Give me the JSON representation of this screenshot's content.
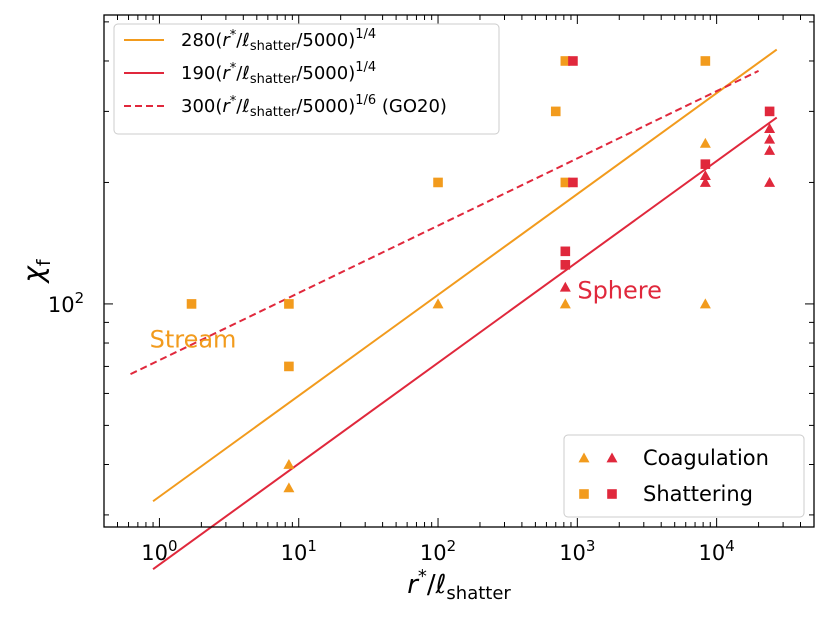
{
  "chart_data": {
    "type": "scatter",
    "title": "",
    "xlabel": {
      "main": "r",
      "sup": "*",
      "slash": "/",
      "ell": "ℓ",
      "sub": "shatter"
    },
    "ylabel": {
      "main": "χ",
      "sub": "f"
    },
    "xscale": "log",
    "yscale": "log",
    "xlim": [
      0.4,
      50000
    ],
    "ylim": [
      28,
      520
    ],
    "x_ticks": [
      {
        "value": 1,
        "base": "10",
        "exp": "0"
      },
      {
        "value": 10,
        "base": "10",
        "exp": "1"
      },
      {
        "value": 100,
        "base": "10",
        "exp": "2"
      },
      {
        "value": 1000,
        "base": "10",
        "exp": "3"
      },
      {
        "value": 10000,
        "base": "10",
        "exp": "4"
      }
    ],
    "y_ticks": [
      {
        "value": 100,
        "base": "10",
        "exp": "2"
      }
    ],
    "colors": {
      "stream": "#f29b1d",
      "sphere": "#e0283c"
    },
    "lines": [
      {
        "name": "280(r*/ℓshatter/5000)^1/4",
        "coef": 280,
        "exponent": 0.25,
        "x_range": [
          0.9,
          27000
        ],
        "color": "#f29b1d",
        "dash": false
      },
      {
        "name": "190(r*/ℓshatter/5000)^1/4",
        "coef": 190,
        "exponent": 0.25,
        "x_range": [
          0.9,
          27000
        ],
        "color": "#e0283c",
        "dash": false
      },
      {
        "name": "300(r*/ℓshatter/5000)^1/6 (GO20)",
        "coef": 300,
        "exponent": 0.16667,
        "x_range": [
          0.62,
          20000
        ],
        "color": "#e0283c",
        "dash": true
      }
    ],
    "series": [
      {
        "group": "stream",
        "marker": "triangle",
        "color": "#f29b1d",
        "points": [
          [
            8.5,
            35
          ],
          [
            8.5,
            40
          ],
          [
            100,
            100
          ],
          [
            820,
            100
          ],
          [
            8300,
            100
          ],
          [
            8300,
            250
          ]
        ]
      },
      {
        "group": "stream",
        "marker": "square",
        "color": "#f29b1d",
        "points": [
          [
            1.7,
            100
          ],
          [
            8.5,
            100
          ],
          [
            8.5,
            70
          ],
          [
            100,
            200
          ],
          [
            700,
            300
          ],
          [
            820,
            200
          ],
          [
            820,
            400
          ],
          [
            8300,
            400
          ]
        ]
      },
      {
        "group": "sphere",
        "marker": "triangle",
        "color": "#e0283c",
        "points": [
          [
            820,
            110
          ],
          [
            8300,
            208
          ],
          [
            8300,
            200
          ],
          [
            24000,
            200
          ],
          [
            24000,
            240
          ],
          [
            24000,
            256
          ],
          [
            24000,
            272
          ]
        ]
      },
      {
        "group": "sphere",
        "marker": "square",
        "color": "#e0283c",
        "points": [
          [
            930,
            400
          ],
          [
            930,
            200
          ],
          [
            820,
            125
          ],
          [
            820,
            135
          ],
          [
            8300,
            222
          ],
          [
            24000,
            300
          ]
        ]
      }
    ],
    "legend_top": {
      "location": "top-left",
      "entries": [
        {
          "coef": "280(",
          "r": "r",
          "star": "*",
          "slash": "/",
          "ell": "ℓ",
          "sub": "shatter",
          "tail": "/5000)",
          "exp": "1/4",
          "suffix": "",
          "color": "#f29b1d",
          "dash": false
        },
        {
          "coef": "190(",
          "r": "r",
          "star": "*",
          "slash": "/",
          "ell": "ℓ",
          "sub": "shatter",
          "tail": "/5000)",
          "exp": "1/4",
          "suffix": "",
          "color": "#e0283c",
          "dash": true,
          "solid": true
        },
        {
          "coef": "300(",
          "r": "r",
          "star": "*",
          "slash": "/",
          "ell": "ℓ",
          "sub": "shatter",
          "tail": "/5000)",
          "exp": "1/6",
          "suffix": " (GO20)",
          "color": "#e0283c",
          "dash": true
        }
      ]
    },
    "legend_bottom": {
      "location": "bottom-right",
      "entries": [
        {
          "label": "Coagulation",
          "marker": "triangle"
        },
        {
          "label": "Shattering",
          "marker": "square"
        }
      ]
    },
    "annotations": [
      {
        "text": "Stream",
        "x": 0.85,
        "y": 78,
        "color": "#f29b1d"
      },
      {
        "text": "Sphere",
        "x": 1000,
        "y": 103,
        "color": "#e0283c"
      }
    ]
  }
}
